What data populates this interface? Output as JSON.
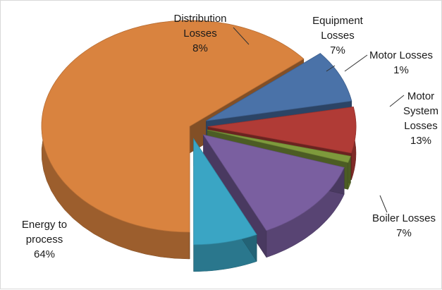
{
  "chart_data": {
    "type": "pie",
    "title": "",
    "exploded": true,
    "perspective": "3d",
    "slices": [
      {
        "label": "Energy to process",
        "value": 64,
        "display": "64%",
        "color": "#d9833f",
        "label_lines": [
          "Energy to",
          "process",
          "64%"
        ]
      },
      {
        "label": "Distribution Losses",
        "value": 8,
        "display": "8%",
        "color": "#4a72a8",
        "label_lines": [
          "Distribution",
          "Losses",
          "8%"
        ]
      },
      {
        "label": "Equipment Losses",
        "value": 7,
        "display": "7%",
        "color": "#b03b36",
        "label_lines": [
          "Equipment",
          "Losses",
          "7%"
        ]
      },
      {
        "label": "Motor Losses",
        "value": 1,
        "display": "1%",
        "color": "#7e9a3c",
        "label_lines": [
          "Motor Losses",
          "1%"
        ]
      },
      {
        "label": "Motor System Losses",
        "value": 13,
        "display": "13%",
        "color": "#7a5fa0",
        "label_lines": [
          "Motor",
          "System",
          "Losses",
          "13%"
        ]
      },
      {
        "label": "Boiler Losses",
        "value": 7,
        "display": "7%",
        "color": "#3aa5c4",
        "label_lines": [
          "Boiler Losses",
          "7%"
        ]
      }
    ]
  }
}
